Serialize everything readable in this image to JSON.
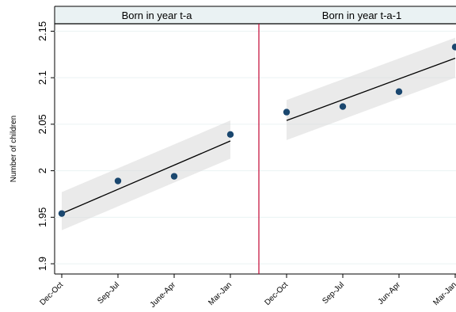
{
  "chart_data": {
    "type": "scatter",
    "ylabel": "Number of children",
    "ylim": [
      1.9,
      2.157
    ],
    "yticks": [
      1.9,
      1.95,
      2,
      2.05,
      2.1,
      2.15
    ],
    "ytick_labels": [
      "1.9",
      "1.95",
      "2",
      "2.05",
      "2.1",
      "2.15"
    ],
    "grid": true,
    "panels": [
      {
        "title": "Born in year t-a",
        "categories": [
          "Dec-Oct",
          "Sep-Jul",
          "June-Apr",
          "Mar-Jan"
        ],
        "values": [
          1.954,
          1.989,
          1.994,
          2.039
        ],
        "fit_line": [
          1.954,
          2.032
        ],
        "ci_lower": [
          1.936,
          2.013
        ],
        "ci_upper": [
          1.977,
          2.054
        ]
      },
      {
        "title": "Born in year t-a-1",
        "categories": [
          "Dec-Oct",
          "Sep-Jul",
          "Jun-Apr",
          "Mar-Jan"
        ],
        "values": [
          2.063,
          2.069,
          2.085,
          2.133
        ],
        "fit_line": [
          2.054,
          2.121
        ],
        "ci_lower": [
          2.033,
          2.1
        ],
        "ci_upper": [
          2.076,
          2.143
        ]
      }
    ],
    "colors": {
      "marker": "#1a476f",
      "fit_line": "#000000",
      "ci_band": "#d9d9d9",
      "divider": "#c10534",
      "header_bg": "#eaf2f3",
      "grid": "#eaf2f3"
    }
  }
}
